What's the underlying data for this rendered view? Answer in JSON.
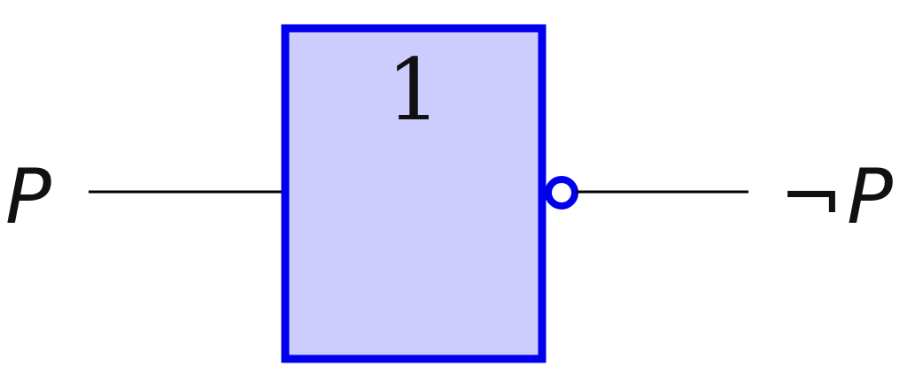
{
  "gate": {
    "symbol": "1",
    "fill_color": "#ccccff",
    "stroke_color": "#0000ee"
  },
  "input": {
    "label": "P"
  },
  "output": {
    "negation_symbol": "¬",
    "label": "P"
  },
  "wire_color": "#000000"
}
